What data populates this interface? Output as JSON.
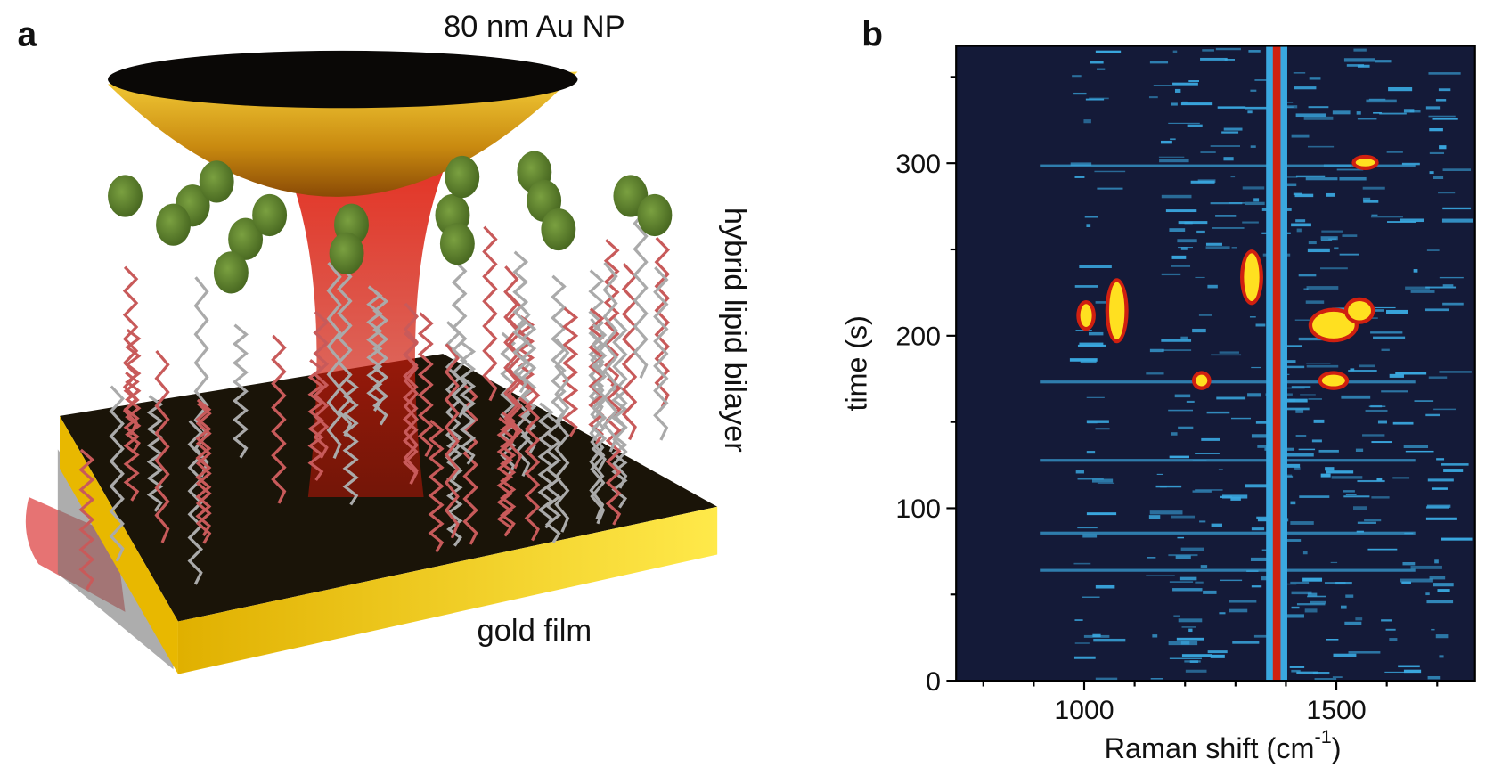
{
  "panels": {
    "a": {
      "label": "a",
      "nanoparticle": "80 nm Au NP",
      "bilayer": "hybrid lipid bilayer",
      "film": "gold film"
    },
    "b": {
      "label": "b"
    }
  },
  "chart_data": {
    "type": "heatmap",
    "x_label": {
      "text": "Raman shift (cm",
      "superscript": "-1",
      "close": ")"
    },
    "y_label": "time (s)",
    "xlim": [
      746,
      1775
    ],
    "ylim": [
      0,
      368
    ],
    "xticks": [
      1000,
      1500
    ],
    "xminorticks": [
      800,
      900,
      1100,
      1200,
      1300,
      1400,
      1600,
      1700
    ],
    "yticks": [
      0,
      100,
      200,
      300
    ],
    "yminorticks": [
      50,
      150,
      250,
      350
    ]
  }
}
